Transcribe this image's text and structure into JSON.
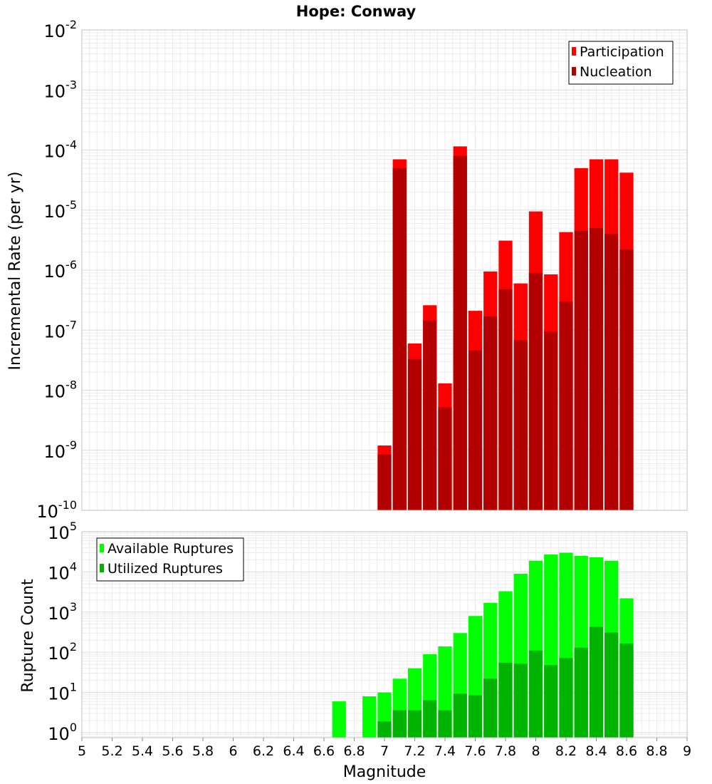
{
  "title": "Hope: Conway",
  "chart_data": [
    {
      "type": "bar",
      "panel": "top",
      "ylabel": "Incremental Rate (per yr)",
      "yscale": "log",
      "ylim": [
        1e-10,
        0.01
      ],
      "xlim": [
        5,
        9
      ],
      "ytick_exponents": [
        "-10",
        "-9",
        "-8",
        "-7",
        "-6",
        "-5",
        "-4",
        "-3",
        "-2"
      ],
      "ytick_base": "10",
      "grid": true,
      "legend": {
        "placement": "top-right",
        "entries": [
          "Participation",
          "Nucleation"
        ]
      },
      "x": [
        7.0,
        7.1,
        7.2,
        7.3,
        7.4,
        7.5,
        7.6,
        7.7,
        7.8,
        7.9,
        8.0,
        8.1,
        8.2,
        8.3,
        8.4,
        8.5,
        8.6
      ],
      "series": [
        {
          "name": "Participation",
          "color": "#ff0000",
          "values": [
            1.2e-09,
            7e-05,
            6e-08,
            2.6e-07,
            1.3e-08,
            0.000115,
            2.1e-07,
            9.5e-07,
            3.1e-06,
            6e-07,
            9.5e-06,
            8.5e-07,
            4.3e-06,
            5e-05,
            7e-05,
            7e-05,
            4.2e-05
          ]
        },
        {
          "name": "Nucleation",
          "color": "#b30000",
          "values": [
            8.5e-10,
            5e-05,
            3.3e-08,
            1.45e-07,
            5.2e-09,
            8e-05,
            4.6e-08,
            1.7e-07,
            4.8e-07,
            6.8e-08,
            9e-07,
            9.5e-08,
            3e-07,
            4.5e-06,
            5e-06,
            4e-06,
            2.2e-06
          ]
        }
      ]
    },
    {
      "type": "bar",
      "panel": "bottom",
      "ylabel": "Rupture Count",
      "xlabel": "Magnitude",
      "yscale": "log",
      "ylim": [
        0.75,
        100000
      ],
      "xlim": [
        5,
        9
      ],
      "ytick_exponents": [
        "0",
        "1",
        "2",
        "3",
        "4",
        "5"
      ],
      "ytick_base": "10",
      "xticks": [
        "5",
        "5.2",
        "5.4",
        "5.6",
        "5.8",
        "6",
        "6.2",
        "6.4",
        "6.6",
        "6.8",
        "7",
        "7.2",
        "7.4",
        "7.6",
        "7.8",
        "8",
        "8.2",
        "8.4",
        "8.6",
        "8.8",
        "9"
      ],
      "grid": true,
      "legend": {
        "placement": "top-left",
        "entries": [
          "Available Ruptures",
          "Utilized Ruptures"
        ]
      },
      "x": [
        6.7,
        6.9,
        7.0,
        7.1,
        7.2,
        7.3,
        7.4,
        7.5,
        7.6,
        7.7,
        7.8,
        7.9,
        8.0,
        8.1,
        8.2,
        8.3,
        8.4,
        8.5,
        8.6
      ],
      "series": [
        {
          "name": "Available Ruptures",
          "color": "#00ff00",
          "values": [
            6,
            8,
            10,
            22,
            40,
            90,
            140,
            300,
            800,
            1700,
            3300,
            9000,
            19000,
            27000,
            30000,
            25000,
            23000,
            19000,
            2200
          ]
        },
        {
          "name": "Utilized Ruptures",
          "color": "#00b300",
          "values": [
            0,
            0,
            1.9,
            3.6,
            3.6,
            6.4,
            3.6,
            9.3,
            8.5,
            22,
            55,
            52,
            110,
            48,
            72,
            130,
            430,
            310,
            165
          ]
        }
      ]
    }
  ]
}
